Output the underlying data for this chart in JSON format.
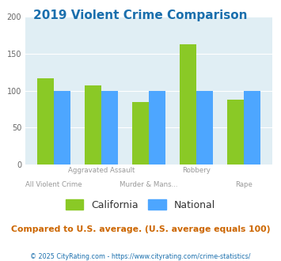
{
  "title": "2019 Violent Crime Comparison",
  "title_color": "#1a6fad",
  "categories": [
    "All Violent Crime",
    "Aggravated Assault",
    "Murder & Mans...",
    "Robbery",
    "Rape"
  ],
  "california_values": [
    117,
    107,
    85,
    163,
    88
  ],
  "national_values": [
    100,
    100,
    100,
    100,
    100
  ],
  "california_color": "#8ac926",
  "national_color": "#4da6ff",
  "ylim": [
    0,
    200
  ],
  "yticks": [
    0,
    50,
    100,
    150,
    200
  ],
  "bg_color": "#e0eef4",
  "fig_bg": "#ffffff",
  "subtitle": "Compared to U.S. average. (U.S. average equals 100)",
  "subtitle_color": "#cc6600",
  "footer": "© 2025 CityRating.com - https://www.cityrating.com/crime-statistics/",
  "footer_color": "#1a6fad",
  "legend_labels": [
    "California",
    "National"
  ],
  "bar_width": 0.35,
  "group_positions": [
    0,
    1,
    2,
    3,
    4
  ]
}
